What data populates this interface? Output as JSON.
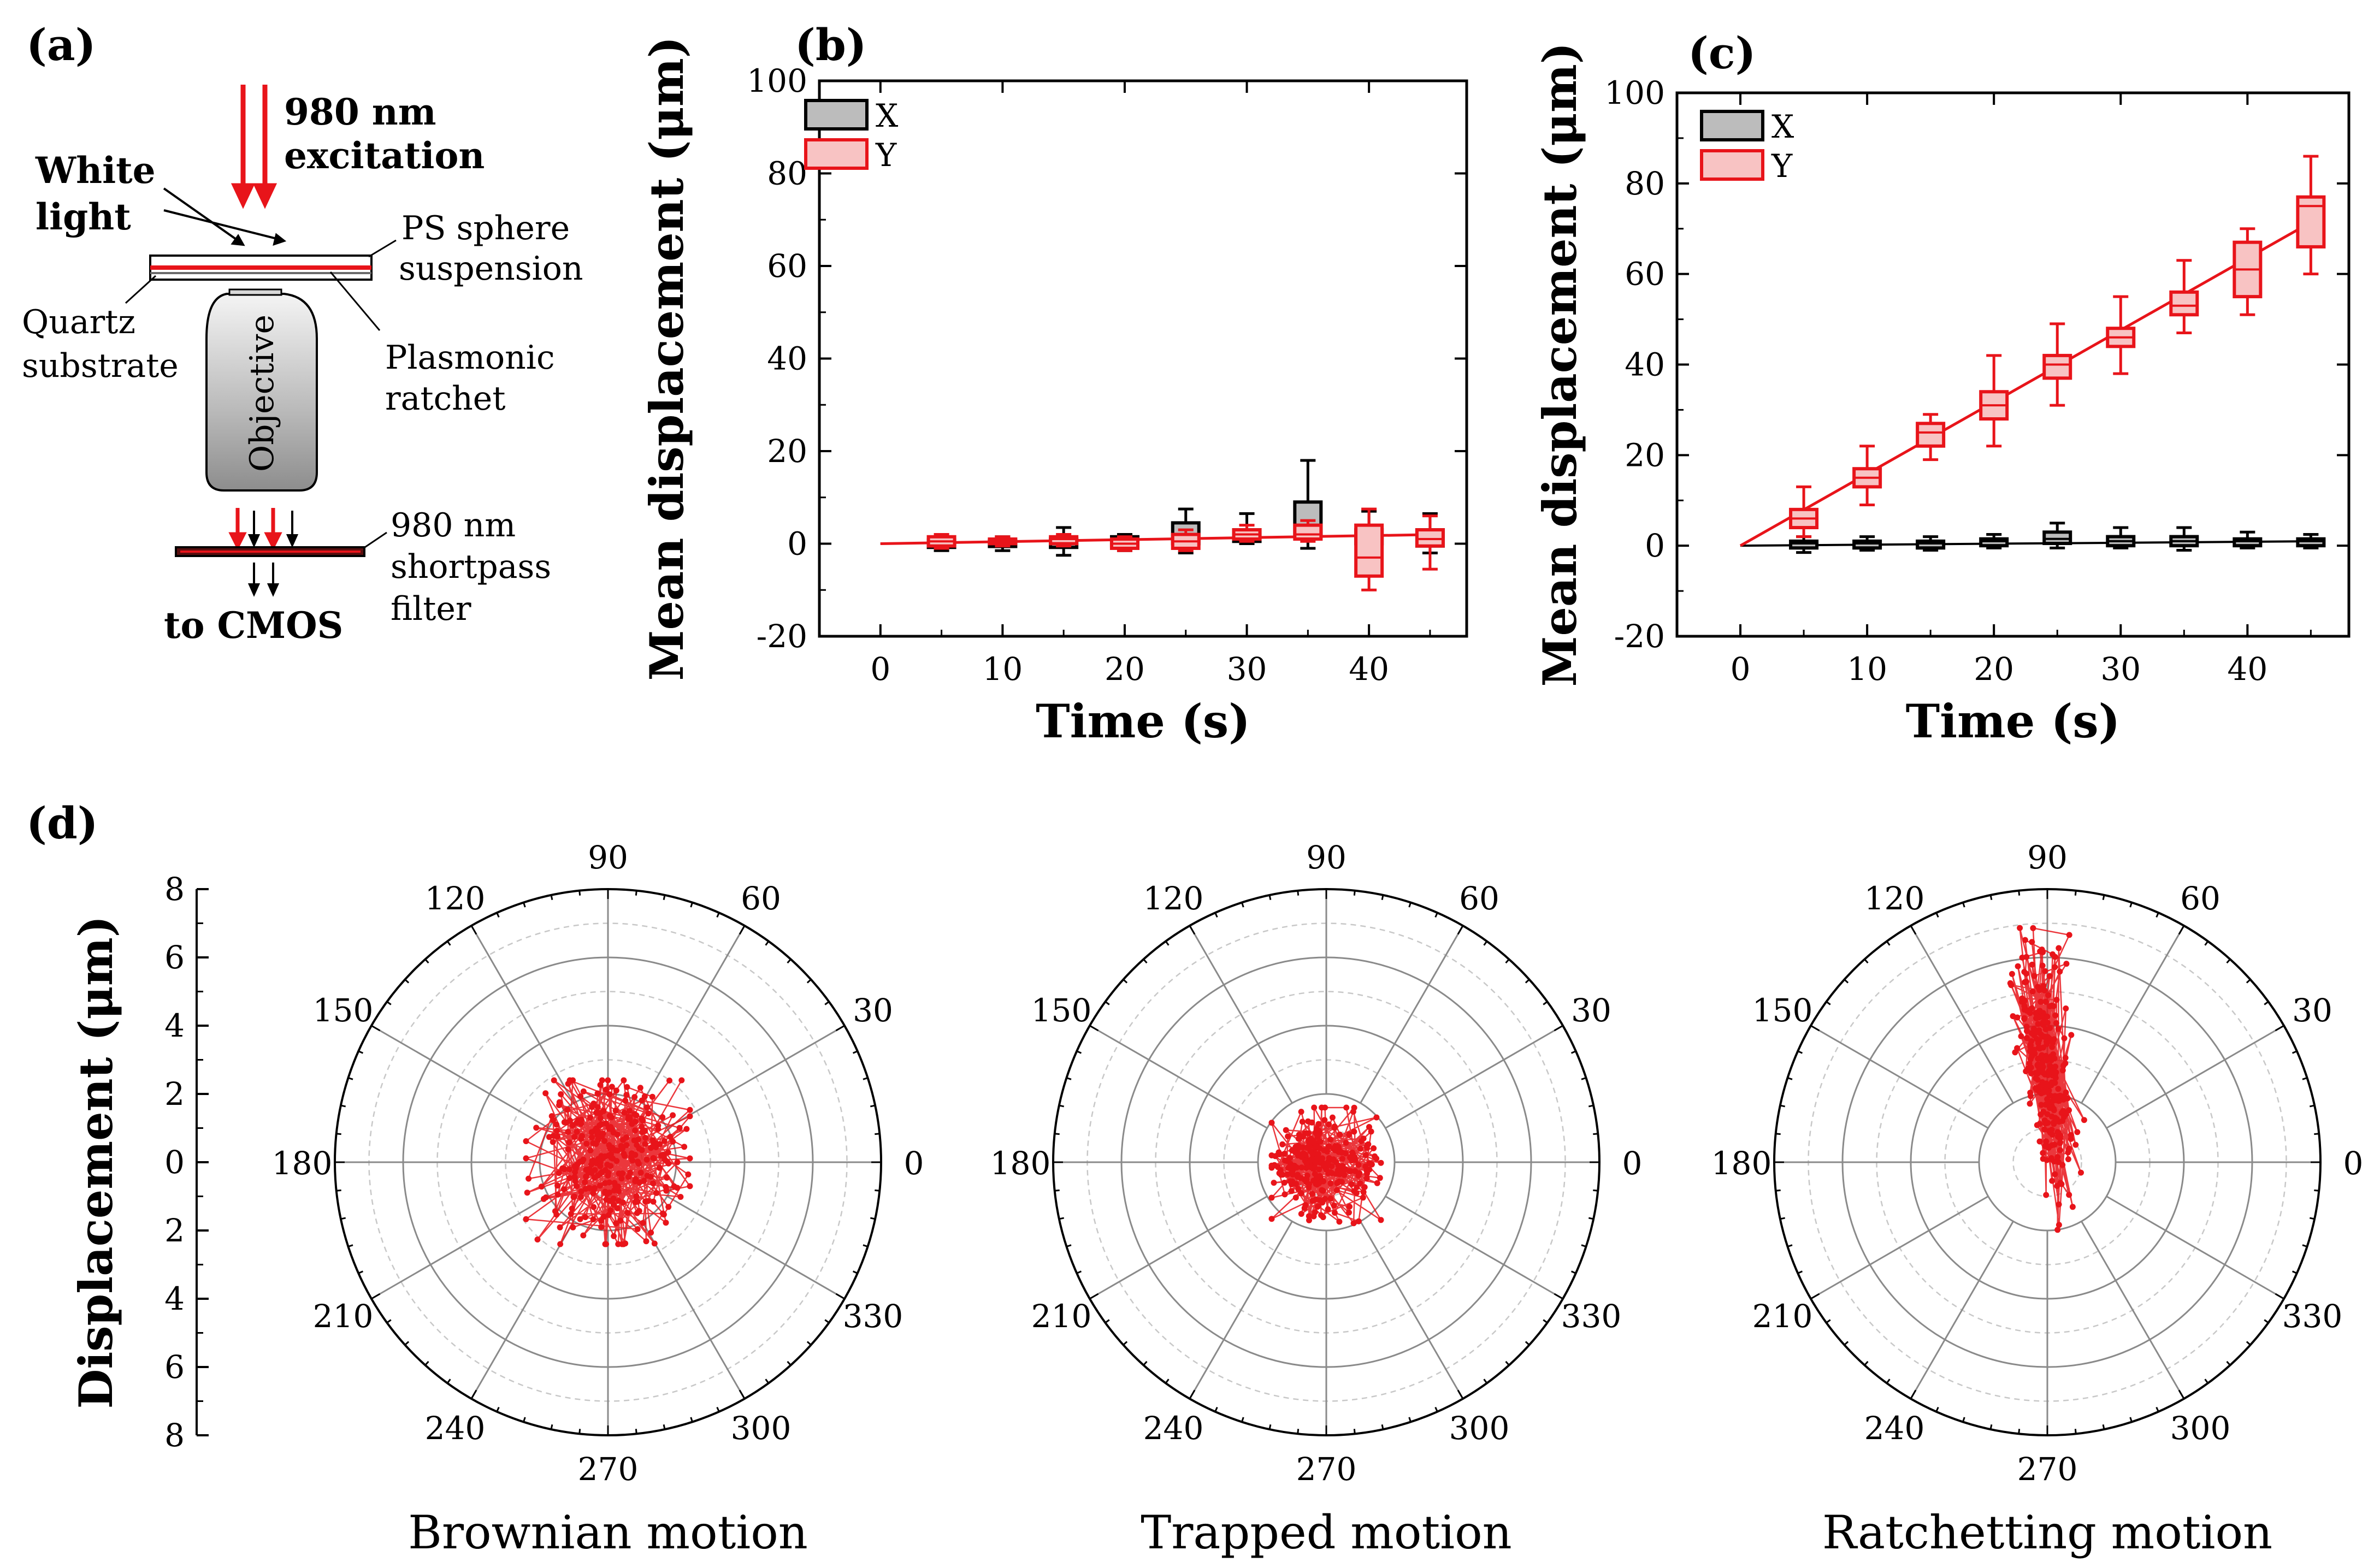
{
  "panel_labels": {
    "a": "(a)",
    "b": "(b)",
    "c": "(c)",
    "d": "(d)"
  },
  "schematic": {
    "excitation_line1": "980 nm",
    "excitation_line2": "excitation",
    "white_light_line1": "White",
    "white_light_line2": "light",
    "ps_line1": "PS sphere",
    "ps_line2": "suspension",
    "quartz_line1": "Quartz",
    "quartz_line2": "substrate",
    "plasmonic_line1": "Plasmonic",
    "plasmonic_line2": "ratchet",
    "objective": "Objective",
    "filter_line1": "980 nm",
    "filter_line2": "shortpass",
    "filter_line3": "filter",
    "cmos": "to CMOS"
  },
  "colors": {
    "red": "#e8141a",
    "red_fill": "#f8c3c3",
    "black": "#000000",
    "grey_fill": "#bcbcbc",
    "grid": "#9a9a9a"
  },
  "chart_data": [
    {
      "id": "b",
      "type": "box",
      "xlabel": "Time (s)",
      "ylabel": "Mean displacement (μm)",
      "xlim": [
        -5,
        48
      ],
      "ylim": [
        -20,
        100
      ],
      "xticks": [
        0,
        10,
        20,
        30,
        40
      ],
      "yticks": [
        -20,
        0,
        20,
        40,
        60,
        80,
        100
      ],
      "x_tick_labels": [
        "0",
        "10",
        "20",
        "30",
        "40"
      ],
      "y_tick_labels": [
        "-20",
        "0",
        "20",
        "40",
        "60",
        "80",
        "100"
      ],
      "legend": [
        "X",
        "Y"
      ],
      "series": [
        {
          "name": "X",
          "boxes": [
            {
              "t": 5,
              "min": -1.5,
              "q1": -0.8,
              "med": 0,
              "q3": 0.8,
              "max": 1.5
            },
            {
              "t": 10,
              "min": -1.5,
              "q1": -0.6,
              "med": 0,
              "q3": 0.6,
              "max": 1.5
            },
            {
              "t": 15,
              "min": -2.5,
              "q1": -0.8,
              "med": 0,
              "q3": 1,
              "max": 3.5
            },
            {
              "t": 20,
              "min": -1.5,
              "q1": -0.5,
              "med": 0.5,
              "q3": 1.5,
              "max": 2
            },
            {
              "t": 25,
              "min": -2,
              "q1": 0,
              "med": 1.5,
              "q3": 4.5,
              "max": 7.5
            },
            {
              "t": 30,
              "min": 0,
              "q1": 0.5,
              "med": 1.5,
              "q3": 3,
              "max": 6.5
            },
            {
              "t": 35,
              "min": -1,
              "q1": 2,
              "med": 3.5,
              "q3": 9,
              "max": 18
            },
            {
              "t": 40,
              "min": -1,
              "q1": 0,
              "med": 1,
              "q3": 3,
              "max": 7
            },
            {
              "t": 45,
              "min": -2,
              "q1": -0.5,
              "med": 1,
              "q3": 3,
              "max": 6.5
            }
          ],
          "mean_line": [
            [
              0,
              0
            ],
            [
              46,
              2
            ]
          ]
        },
        {
          "name": "Y",
          "boxes": [
            {
              "t": 5,
              "min": -1,
              "q1": -0.5,
              "med": 0.5,
              "q3": 1.5,
              "max": 2
            },
            {
              "t": 10,
              "min": -0.5,
              "q1": 0,
              "med": 0.5,
              "q3": 1,
              "max": 1.5
            },
            {
              "t": 15,
              "min": -0.5,
              "q1": 0,
              "med": 1,
              "q3": 1.5,
              "max": 2
            },
            {
              "t": 20,
              "min": -1.5,
              "q1": -1,
              "med": 0,
              "q3": 1,
              "max": 1.5
            },
            {
              "t": 25,
              "min": -1.5,
              "q1": -1,
              "med": 0.5,
              "q3": 2,
              "max": 3
            },
            {
              "t": 30,
              "min": 0.5,
              "q1": 1,
              "med": 2,
              "q3": 3,
              "max": 4
            },
            {
              "t": 35,
              "min": 0.5,
              "q1": 1,
              "med": 2,
              "q3": 4,
              "max": 5
            },
            {
              "t": 40,
              "min": -10,
              "q1": -7,
              "med": -3,
              "q3": 4,
              "max": 7.5
            },
            {
              "t": 45,
              "min": -5.5,
              "q1": -0.5,
              "med": 1,
              "q3": 3,
              "max": 6
            }
          ],
          "mean_line": [
            [
              0,
              0
            ],
            [
              46,
              2
            ]
          ]
        }
      ]
    },
    {
      "id": "c",
      "type": "box",
      "xlabel": "Time (s)",
      "ylabel": "Mean displacement (μm)",
      "xlim": [
        -5,
        48
      ],
      "ylim": [
        -20,
        100
      ],
      "xticks": [
        0,
        10,
        20,
        30,
        40
      ],
      "yticks": [
        -20,
        0,
        20,
        40,
        60,
        80,
        100
      ],
      "x_tick_labels": [
        "0",
        "10",
        "20",
        "30",
        "40"
      ],
      "y_tick_labels": [
        "-20",
        "0",
        "20",
        "40",
        "60",
        "80",
        "100"
      ],
      "legend": [
        "X",
        "Y"
      ],
      "series": [
        {
          "name": "X",
          "boxes": [
            {
              "t": 5,
              "min": -1.5,
              "q1": -0.5,
              "med": 0.5,
              "q3": 1,
              "max": 2
            },
            {
              "t": 10,
              "min": -1,
              "q1": -0.5,
              "med": 0.5,
              "q3": 1,
              "max": 2
            },
            {
              "t": 15,
              "min": -1,
              "q1": -0.5,
              "med": 0.5,
              "q3": 1,
              "max": 2
            },
            {
              "t": 20,
              "min": -0.5,
              "q1": 0,
              "med": 1,
              "q3": 1.5,
              "max": 2.5
            },
            {
              "t": 25,
              "min": -0.5,
              "q1": 0.5,
              "med": 1.5,
              "q3": 3,
              "max": 5
            },
            {
              "t": 30,
              "min": -0.5,
              "q1": 0,
              "med": 1,
              "q3": 2,
              "max": 4
            },
            {
              "t": 35,
              "min": -1,
              "q1": 0,
              "med": 1,
              "q3": 2,
              "max": 4
            },
            {
              "t": 40,
              "min": -0.5,
              "q1": 0,
              "med": 1,
              "q3": 1.5,
              "max": 3
            },
            {
              "t": 45,
              "min": -0.5,
              "q1": 0,
              "med": 1,
              "q3": 1.5,
              "max": 2.5
            }
          ],
          "mean_line": [
            [
              0,
              0
            ],
            [
              46,
              1
            ]
          ]
        },
        {
          "name": "Y",
          "boxes": [
            {
              "t": 5,
              "min": 2,
              "q1": 4,
              "med": 6,
              "q3": 8,
              "max": 13
            },
            {
              "t": 10,
              "min": 9,
              "q1": 13,
              "med": 15,
              "q3": 17,
              "max": 22
            },
            {
              "t": 15,
              "min": 19,
              "q1": 22,
              "med": 25,
              "q3": 27,
              "max": 29
            },
            {
              "t": 20,
              "min": 22,
              "q1": 28,
              "med": 31,
              "q3": 34,
              "max": 42
            },
            {
              "t": 25,
              "min": 31,
              "q1": 37,
              "med": 40,
              "q3": 42,
              "max": 49
            },
            {
              "t": 30,
              "min": 38,
              "q1": 44,
              "med": 46,
              "q3": 48,
              "max": 55
            },
            {
              "t": 35,
              "min": 47,
              "q1": 51,
              "med": 53,
              "q3": 56,
              "max": 63
            },
            {
              "t": 40,
              "min": 51,
              "q1": 55,
              "med": 61,
              "q3": 67,
              "max": 70
            },
            {
              "t": 45,
              "min": 60,
              "q1": 66,
              "med": 75,
              "q3": 77,
              "max": 86
            }
          ],
          "mean_line": [
            [
              0,
              0
            ],
            [
              46,
              73
            ]
          ]
        }
      ]
    },
    {
      "id": "d",
      "type": "polar_scatter",
      "ylabel": "Displacement (μm)",
      "r_max": 8,
      "r_grid": [
        2,
        4,
        6,
        8
      ],
      "r_tick_labels": [
        "8",
        "6",
        "4",
        "2",
        "0",
        "2",
        "4",
        "6",
        "8"
      ],
      "angle_labels": [
        "0",
        "30",
        "60",
        "90",
        "120",
        "150",
        "180",
        "210",
        "240",
        "270",
        "300",
        "330"
      ],
      "plots": [
        {
          "caption": "Brownian motion",
          "mode": "brownian",
          "cx": 0,
          "cy": 0,
          "sx": 1.1,
          "sy": 1.1,
          "n": 320
        },
        {
          "caption": "Trapped motion",
          "mode": "trapped",
          "cx": 0,
          "cy": 0,
          "sx": 0.75,
          "sy": 0.75,
          "n": 280
        },
        {
          "caption": "Ratchetting motion",
          "mode": "ratchet",
          "cx": 0,
          "cy": 2.4,
          "sx": 0.35,
          "sy": 1.6,
          "n": 300
        }
      ]
    }
  ]
}
